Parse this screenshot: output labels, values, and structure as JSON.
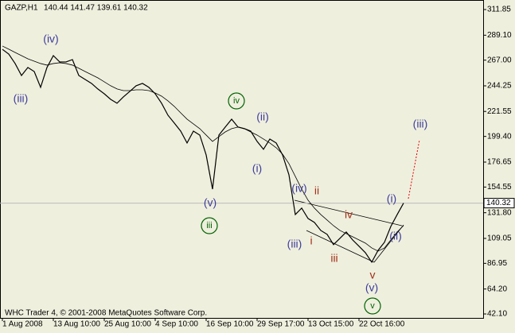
{
  "chart_data": {
    "type": "line",
    "title": "GAZP,H1",
    "subtitle": "140.44 141.47 139.61 140.32",
    "footer": "WHC Trader 4, © 2001-2008 MetaQuotes Software Corp.",
    "categories": [
      "1 Aug 2008",
      null,
      null,
      null,
      null,
      null,
      null,
      null,
      "13 Aug 10:00",
      null,
      null,
      null,
      null,
      null,
      null,
      null,
      "25 Aug 10:00",
      null,
      null,
      null,
      null,
      null,
      null,
      null,
      "4 Sep 10:00",
      null,
      null,
      null,
      null,
      null,
      null,
      null,
      "16 Sep 10:00",
      null,
      null,
      null,
      null,
      null,
      null,
      null,
      "29 Sep 17:00",
      null,
      null,
      null,
      null,
      null,
      null,
      null,
      "13 Oct 15:00",
      null,
      null,
      null,
      null,
      null,
      null,
      null,
      "22 Oct 16:00",
      null,
      null,
      null,
      null,
      null,
      null,
      null
    ],
    "series": [
      {
        "color": "#000000",
        "values": [
          276.6,
          272.4,
          264.0,
          253.4,
          260.5,
          256.9,
          242.9,
          260.5,
          271.0,
          265.4,
          265.4,
          267.5,
          253.4,
          249.9,
          246.4,
          241.4,
          237.2,
          232.3,
          228.8,
          234.4,
          239.3,
          244.3,
          246.4,
          242.9,
          237.2,
          228.8,
          218.2,
          211.2,
          204.1,
          193.6,
          204.1,
          200.6,
          183.0,
          152.7,
          200.6,
          207.7,
          214.7,
          207.7,
          206.3,
          204.1,
          195.0,
          188.0,
          197.1,
          193.6,
          183.0,
          165.4,
          130.2,
          135.9,
          126.7,
          123.2,
          116.1,
          112.6,
          103.5,
          109.1,
          114.7,
          107.7,
          102.1,
          96.4,
          88.0,
          98.5,
          105.6,
          119.7,
          130.2,
          140.3
        ]
      },
      {
        "color": "#000000",
        "values": [
          279.5,
          276.7,
          273.8,
          271.0,
          268.2,
          266.1,
          264.0,
          262.6,
          264.0,
          264.7,
          264.0,
          262.6,
          259.8,
          256.9,
          254.1,
          251.3,
          247.8,
          244.3,
          241.5,
          240.0,
          240.0,
          240.7,
          240.7,
          240.0,
          237.9,
          235.1,
          230.9,
          226.0,
          220.3,
          214.7,
          210.5,
          206.3,
          200.6,
          195.0,
          199.2,
          203.4,
          206.3,
          207.7,
          206.3,
          203.4,
          200.6,
          197.1,
          193.6,
          189.4,
          183.7,
          175.3,
          164.0,
          152.7,
          142.9,
          135.9,
          130.2,
          125.3,
          120.3,
          116.1,
          113.3,
          110.5,
          107.7,
          104.9,
          100.6,
          97.8,
          100.6,
          107.7,
          114.7,
          120.4
        ]
      }
    ],
    "last_price": 140.32,
    "ylim": [
      38.6,
      320.3
    ],
    "yticks": [
      311.85,
      {
        "value": 289.1,
        "label": "289.10"
      },
      {
        "value": 267,
        "label": "267.00"
      },
      244.25,
      221.55,
      {
        "value": 199.4,
        "label": "199.40"
      },
      176.65,
      154.55,
      {
        "value": 131.8,
        "label": "131.80"
      },
      109.05,
      86.95,
      {
        "value": 64.2,
        "label": "64.20"
      },
      {
        "value": 42.1,
        "label": "42.10"
      }
    ],
    "annotations": [
      {
        "text": "(iii)",
        "color": "#3c3c9c"
      },
      {
        "text": "(iv)",
        "color": "#3c3c9c"
      },
      {
        "text": "(v)",
        "color": "#3c3c9c"
      },
      {
        "text": "iii",
        "color": "#006400"
      },
      {
        "text": "iv",
        "color": "#006400"
      },
      {
        "text": "(ii)",
        "color": "#3c3c9c"
      },
      {
        "text": "(i)",
        "color": "#3c3c9c"
      },
      {
        "text": "(iv)",
        "color": "#3c3c9c"
      },
      {
        "text": "ii",
        "color": "#a0301a"
      },
      {
        "text": "(iii)",
        "color": "#3c3c9c"
      },
      {
        "text": "i",
        "color": "#a0301a"
      },
      {
        "text": "iii",
        "color": "#a0301a"
      },
      {
        "text": "iv",
        "color": "#a0301a"
      },
      {
        "text": "v",
        "color": "#a0301a"
      },
      {
        "text": "(v)",
        "color": "#3c3c9c"
      },
      {
        "text": "v",
        "color": "#006400"
      },
      {
        "text": "(i)",
        "color": "#3c3c9c"
      },
      {
        "text": "(ii)",
        "color": "#3c3c9c"
      },
      {
        "text": "(iii)",
        "color": "#3c3c9c"
      }
    ]
  }
}
